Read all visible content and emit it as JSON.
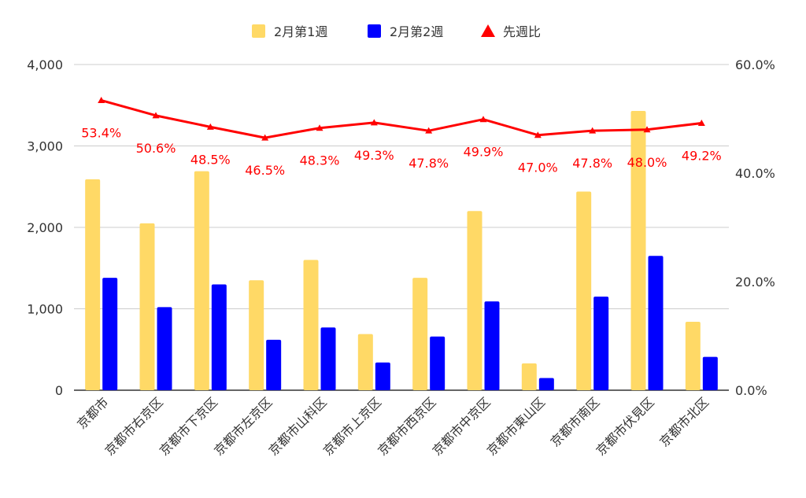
{
  "chart_data": {
    "type": "bar",
    "categories": [
      "京都市",
      "京都市右京区",
      "京都市下京区",
      "京都市左京区",
      "京都市山科区",
      "京都市上京区",
      "京都市西京区",
      "京都市中京区",
      "京都市東山区",
      "京都市南区",
      "京都市伏見区",
      "京都市北区"
    ],
    "series": [
      {
        "name": "2月第1週",
        "type": "bar",
        "axis": "left",
        "color": "#FFD966",
        "values": [
          2590,
          2050,
          2690,
          1350,
          1600,
          690,
          1380,
          2200,
          330,
          2440,
          3430,
          840
        ]
      },
      {
        "name": "2月第2週",
        "type": "bar",
        "axis": "left",
        "color": "#0000FF",
        "values": [
          1380,
          1020,
          1300,
          620,
          770,
          340,
          660,
          1090,
          150,
          1150,
          1650,
          410
        ]
      },
      {
        "name": "先週比",
        "type": "line",
        "axis": "right",
        "color": "#FF0000",
        "values": [
          53.4,
          50.6,
          48.5,
          46.5,
          48.3,
          49.3,
          47.8,
          49.9,
          47.0,
          47.8,
          48.0,
          49.2
        ],
        "labels": [
          "53.4%",
          "50.6%",
          "48.5%",
          "46.5%",
          "48.3%",
          "49.3%",
          "47.8%",
          "49.9%",
          "47.0%",
          "47.8%",
          "48.0%",
          "49.2%"
        ]
      }
    ],
    "left_axis": {
      "ylim": [
        0,
        4000
      ],
      "ticks": [
        "0",
        "1,000",
        "2,000",
        "3,000",
        "4,000"
      ],
      "tick_values": [
        0,
        1000,
        2000,
        3000,
        4000
      ]
    },
    "right_axis": {
      "ylim": [
        0,
        60
      ],
      "ticks": [
        "0.0%",
        "20.0%",
        "40.0%",
        "60.0%"
      ],
      "tick_values": [
        0,
        20,
        40,
        60
      ]
    },
    "grid": true,
    "legend_position": "top"
  }
}
